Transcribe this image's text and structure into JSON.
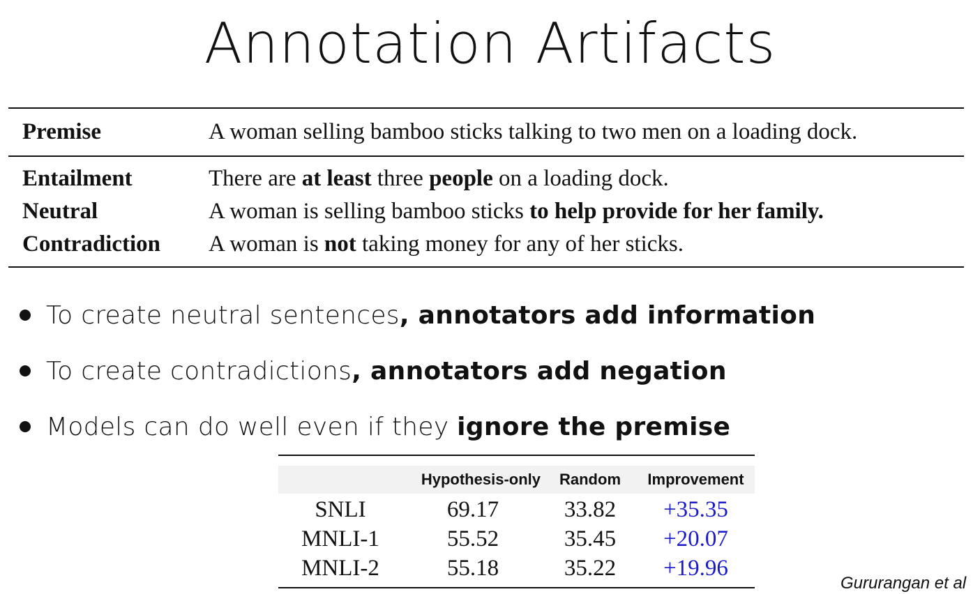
{
  "slide": {
    "title": "Annotation Artifacts"
  },
  "nli_example": {
    "premise": {
      "label": "Premise",
      "text": "A woman selling bamboo sticks talking to two men on a loading dock."
    },
    "entailment": {
      "label": "Entailment",
      "t1": "There are ",
      "b1": "at least",
      "t2": " three ",
      "b2": "people",
      "t3": " on a loading dock."
    },
    "neutral": {
      "label": "Neutral",
      "t1": "A woman is selling bamboo sticks ",
      "b1": "to help provide for her family."
    },
    "contradiction": {
      "label": "Contradiction",
      "t1": "A woman is ",
      "b1": "not",
      "t2": " taking money for any of her sticks."
    }
  },
  "bullets": [
    {
      "plain": "To create neutral sentences",
      "bold": ", annotators add information"
    },
    {
      "plain": "To create contradictions",
      "bold": ", annotators add negation"
    },
    {
      "plain": "Models can do well even if they ",
      "bold": "ignore the premise"
    }
  ],
  "results_table": {
    "headers": [
      "",
      "Hypothesis-only",
      "Random",
      "Improvement"
    ],
    "rows": [
      {
        "dataset": "SNLI",
        "hypothesis_only": "69.17",
        "random": "33.82",
        "improvement": "+35.35"
      },
      {
        "dataset": "MNLI-1",
        "hypothesis_only": "55.52",
        "random": "35.45",
        "improvement": "+20.07"
      },
      {
        "dataset": "MNLI-2",
        "hypothesis_only": "55.18",
        "random": "35.22",
        "improvement": "+19.96"
      }
    ]
  },
  "citation": "Gururangan et al",
  "colors": {
    "improvement": "#1a1acc",
    "header_bg": "#f2f2f2",
    "text": "#111111"
  }
}
